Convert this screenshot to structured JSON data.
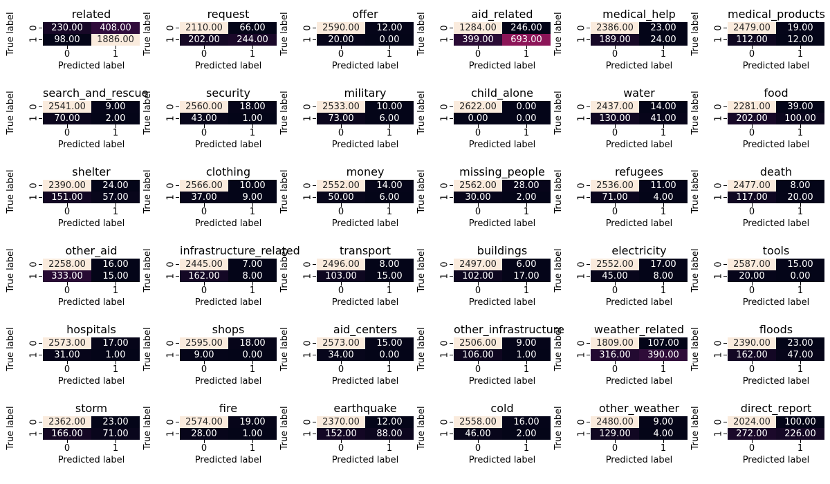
{
  "chart_data": [
    {
      "type": "heatmap",
      "title": "related",
      "xlabel": "Predicted label",
      "ylabel": "True label",
      "x_ticks": [
        "0",
        "1"
      ],
      "y_ticks": [
        "0",
        "1"
      ],
      "values": [
        [
          230,
          408
        ],
        [
          98,
          1886
        ]
      ]
    },
    {
      "type": "heatmap",
      "title": "request",
      "xlabel": "Predicted label",
      "ylabel": "True label",
      "x_ticks": [
        "0",
        "1"
      ],
      "y_ticks": [
        "0",
        "1"
      ],
      "values": [
        [
          2110,
          66
        ],
        [
          202,
          244
        ]
      ]
    },
    {
      "type": "heatmap",
      "title": "offer",
      "xlabel": "Predicted label",
      "ylabel": "True label",
      "x_ticks": [
        "0",
        "1"
      ],
      "y_ticks": [
        "0",
        "1"
      ],
      "values": [
        [
          2590,
          12
        ],
        [
          20,
          0
        ]
      ]
    },
    {
      "type": "heatmap",
      "title": "aid_related",
      "xlabel": "Predicted label",
      "ylabel": "True label",
      "x_ticks": [
        "0",
        "1"
      ],
      "y_ticks": [
        "0",
        "1"
      ],
      "values": [
        [
          1284,
          246
        ],
        [
          399,
          693
        ]
      ]
    },
    {
      "type": "heatmap",
      "title": "medical_help",
      "xlabel": "Predicted label",
      "ylabel": "True label",
      "x_ticks": [
        "0",
        "1"
      ],
      "y_ticks": [
        "0",
        "1"
      ],
      "values": [
        [
          2386,
          23
        ],
        [
          189,
          24
        ]
      ]
    },
    {
      "type": "heatmap",
      "title": "medical_products",
      "xlabel": "Predicted label",
      "ylabel": "True label",
      "x_ticks": [
        "0",
        "1"
      ],
      "y_ticks": [
        "0",
        "1"
      ],
      "values": [
        [
          2479,
          19
        ],
        [
          112,
          12
        ]
      ]
    },
    {
      "type": "heatmap",
      "title": "search_and_rescue",
      "xlabel": "Predicted label",
      "ylabel": "True label",
      "x_ticks": [
        "0",
        "1"
      ],
      "y_ticks": [
        "0",
        "1"
      ],
      "values": [
        [
          2541,
          9
        ],
        [
          70,
          2
        ]
      ]
    },
    {
      "type": "heatmap",
      "title": "security",
      "xlabel": "Predicted label",
      "ylabel": "True label",
      "x_ticks": [
        "0",
        "1"
      ],
      "y_ticks": [
        "0",
        "1"
      ],
      "values": [
        [
          2560,
          18
        ],
        [
          43,
          1
        ]
      ]
    },
    {
      "type": "heatmap",
      "title": "military",
      "xlabel": "Predicted label",
      "ylabel": "True label",
      "x_ticks": [
        "0",
        "1"
      ],
      "y_ticks": [
        "0",
        "1"
      ],
      "values": [
        [
          2533,
          10
        ],
        [
          73,
          6
        ]
      ]
    },
    {
      "type": "heatmap",
      "title": "child_alone",
      "xlabel": "Predicted label",
      "ylabel": "True label",
      "x_ticks": [
        "0",
        "1"
      ],
      "y_ticks": [
        "0",
        "1"
      ],
      "values": [
        [
          2622,
          0
        ],
        [
          0,
          0
        ]
      ]
    },
    {
      "type": "heatmap",
      "title": "water",
      "xlabel": "Predicted label",
      "ylabel": "True label",
      "x_ticks": [
        "0",
        "1"
      ],
      "y_ticks": [
        "0",
        "1"
      ],
      "values": [
        [
          2437,
          14
        ],
        [
          130,
          41
        ]
      ]
    },
    {
      "type": "heatmap",
      "title": "food",
      "xlabel": "Predicted label",
      "ylabel": "True label",
      "x_ticks": [
        "0",
        "1"
      ],
      "y_ticks": [
        "0",
        "1"
      ],
      "values": [
        [
          2281,
          39
        ],
        [
          202,
          100
        ]
      ]
    },
    {
      "type": "heatmap",
      "title": "shelter",
      "xlabel": "Predicted label",
      "ylabel": "True label",
      "x_ticks": [
        "0",
        "1"
      ],
      "y_ticks": [
        "0",
        "1"
      ],
      "values": [
        [
          2390,
          24
        ],
        [
          151,
          57
        ]
      ]
    },
    {
      "type": "heatmap",
      "title": "clothing",
      "xlabel": "Predicted label",
      "ylabel": "True label",
      "x_ticks": [
        "0",
        "1"
      ],
      "y_ticks": [
        "0",
        "1"
      ],
      "values": [
        [
          2566,
          10
        ],
        [
          37,
          9
        ]
      ]
    },
    {
      "type": "heatmap",
      "title": "money",
      "xlabel": "Predicted label",
      "ylabel": "True label",
      "x_ticks": [
        "0",
        "1"
      ],
      "y_ticks": [
        "0",
        "1"
      ],
      "values": [
        [
          2552,
          14
        ],
        [
          50,
          6
        ]
      ]
    },
    {
      "type": "heatmap",
      "title": "missing_people",
      "xlabel": "Predicted label",
      "ylabel": "True label",
      "x_ticks": [
        "0",
        "1"
      ],
      "y_ticks": [
        "0",
        "1"
      ],
      "values": [
        [
          2562,
          28
        ],
        [
          30,
          2
        ]
      ]
    },
    {
      "type": "heatmap",
      "title": "refugees",
      "xlabel": "Predicted label",
      "ylabel": "True label",
      "x_ticks": [
        "0",
        "1"
      ],
      "y_ticks": [
        "0",
        "1"
      ],
      "values": [
        [
          2536,
          11
        ],
        [
          71,
          4
        ]
      ]
    },
    {
      "type": "heatmap",
      "title": "death",
      "xlabel": "Predicted label",
      "ylabel": "True label",
      "x_ticks": [
        "0",
        "1"
      ],
      "y_ticks": [
        "0",
        "1"
      ],
      "values": [
        [
          2477,
          8
        ],
        [
          117,
          20
        ]
      ]
    },
    {
      "type": "heatmap",
      "title": "other_aid",
      "xlabel": "Predicted label",
      "ylabel": "True label",
      "x_ticks": [
        "0",
        "1"
      ],
      "y_ticks": [
        "0",
        "1"
      ],
      "values": [
        [
          2258,
          16
        ],
        [
          333,
          15
        ]
      ]
    },
    {
      "type": "heatmap",
      "title": "infrastructure_related",
      "xlabel": "Predicted label",
      "ylabel": "True label",
      "x_ticks": [
        "0",
        "1"
      ],
      "y_ticks": [
        "0",
        "1"
      ],
      "values": [
        [
          2445,
          7
        ],
        [
          162,
          8
        ]
      ]
    },
    {
      "type": "heatmap",
      "title": "transport",
      "xlabel": "Predicted label",
      "ylabel": "True label",
      "x_ticks": [
        "0",
        "1"
      ],
      "y_ticks": [
        "0",
        "1"
      ],
      "values": [
        [
          2496,
          8
        ],
        [
          103,
          15
        ]
      ]
    },
    {
      "type": "heatmap",
      "title": "buildings",
      "xlabel": "Predicted label",
      "ylabel": "True label",
      "x_ticks": [
        "0",
        "1"
      ],
      "y_ticks": [
        "0",
        "1"
      ],
      "values": [
        [
          2497,
          6
        ],
        [
          102,
          17
        ]
      ]
    },
    {
      "type": "heatmap",
      "title": "electricity",
      "xlabel": "Predicted label",
      "ylabel": "True label",
      "x_ticks": [
        "0",
        "1"
      ],
      "y_ticks": [
        "0",
        "1"
      ],
      "values": [
        [
          2552,
          17
        ],
        [
          45,
          8
        ]
      ]
    },
    {
      "type": "heatmap",
      "title": "tools",
      "xlabel": "Predicted label",
      "ylabel": "True label",
      "x_ticks": [
        "0",
        "1"
      ],
      "y_ticks": [
        "0",
        "1"
      ],
      "values": [
        [
          2587,
          15
        ],
        [
          20,
          0
        ]
      ]
    },
    {
      "type": "heatmap",
      "title": "hospitals",
      "xlabel": "Predicted label",
      "ylabel": "True label",
      "x_ticks": [
        "0",
        "1"
      ],
      "y_ticks": [
        "0",
        "1"
      ],
      "values": [
        [
          2573,
          17
        ],
        [
          31,
          1
        ]
      ]
    },
    {
      "type": "heatmap",
      "title": "shops",
      "xlabel": "Predicted label",
      "ylabel": "True label",
      "x_ticks": [
        "0",
        "1"
      ],
      "y_ticks": [
        "0",
        "1"
      ],
      "values": [
        [
          2595,
          18
        ],
        [
          9,
          0
        ]
      ]
    },
    {
      "type": "heatmap",
      "title": "aid_centers",
      "xlabel": "Predicted label",
      "ylabel": "True label",
      "x_ticks": [
        "0",
        "1"
      ],
      "y_ticks": [
        "0",
        "1"
      ],
      "values": [
        [
          2573,
          15
        ],
        [
          34,
          0
        ]
      ]
    },
    {
      "type": "heatmap",
      "title": "other_infrastructure",
      "xlabel": "Predicted label",
      "ylabel": "True label",
      "x_ticks": [
        "0",
        "1"
      ],
      "y_ticks": [
        "0",
        "1"
      ],
      "values": [
        [
          2506,
          9
        ],
        [
          106,
          1
        ]
      ]
    },
    {
      "type": "heatmap",
      "title": "weather_related",
      "xlabel": "Predicted label",
      "ylabel": "True label",
      "x_ticks": [
        "0",
        "1"
      ],
      "y_ticks": [
        "0",
        "1"
      ],
      "values": [
        [
          1809,
          107
        ],
        [
          316,
          390
        ]
      ]
    },
    {
      "type": "heatmap",
      "title": "floods",
      "xlabel": "Predicted label",
      "ylabel": "True label",
      "x_ticks": [
        "0",
        "1"
      ],
      "y_ticks": [
        "0",
        "1"
      ],
      "values": [
        [
          2390,
          23
        ],
        [
          162,
          47
        ]
      ]
    },
    {
      "type": "heatmap",
      "title": "storm",
      "xlabel": "Predicted label",
      "ylabel": "True label",
      "x_ticks": [
        "0",
        "1"
      ],
      "y_ticks": [
        "0",
        "1"
      ],
      "values": [
        [
          2362,
          23
        ],
        [
          166,
          71
        ]
      ]
    },
    {
      "type": "heatmap",
      "title": "fire",
      "xlabel": "Predicted label",
      "ylabel": "True label",
      "x_ticks": [
        "0",
        "1"
      ],
      "y_ticks": [
        "0",
        "1"
      ],
      "values": [
        [
          2574,
          19
        ],
        [
          28,
          1
        ]
      ]
    },
    {
      "type": "heatmap",
      "title": "earthquake",
      "xlabel": "Predicted label",
      "ylabel": "True label",
      "x_ticks": [
        "0",
        "1"
      ],
      "y_ticks": [
        "0",
        "1"
      ],
      "values": [
        [
          2370,
          12
        ],
        [
          152,
          88
        ]
      ]
    },
    {
      "type": "heatmap",
      "title": "cold",
      "xlabel": "Predicted label",
      "ylabel": "True label",
      "x_ticks": [
        "0",
        "1"
      ],
      "y_ticks": [
        "0",
        "1"
      ],
      "values": [
        [
          2558,
          16
        ],
        [
          46,
          2
        ]
      ]
    },
    {
      "type": "heatmap",
      "title": "other_weather",
      "xlabel": "Predicted label",
      "ylabel": "True label",
      "x_ticks": [
        "0",
        "1"
      ],
      "y_ticks": [
        "0",
        "1"
      ],
      "values": [
        [
          2480,
          9
        ],
        [
          129,
          4
        ]
      ]
    },
    {
      "type": "heatmap",
      "title": "direct_report",
      "xlabel": "Predicted label",
      "ylabel": "True label",
      "x_ticks": [
        "0",
        "1"
      ],
      "y_ticks": [
        "0",
        "1"
      ],
      "values": [
        [
          2024,
          100
        ],
        [
          272,
          226
        ]
      ]
    }
  ]
}
